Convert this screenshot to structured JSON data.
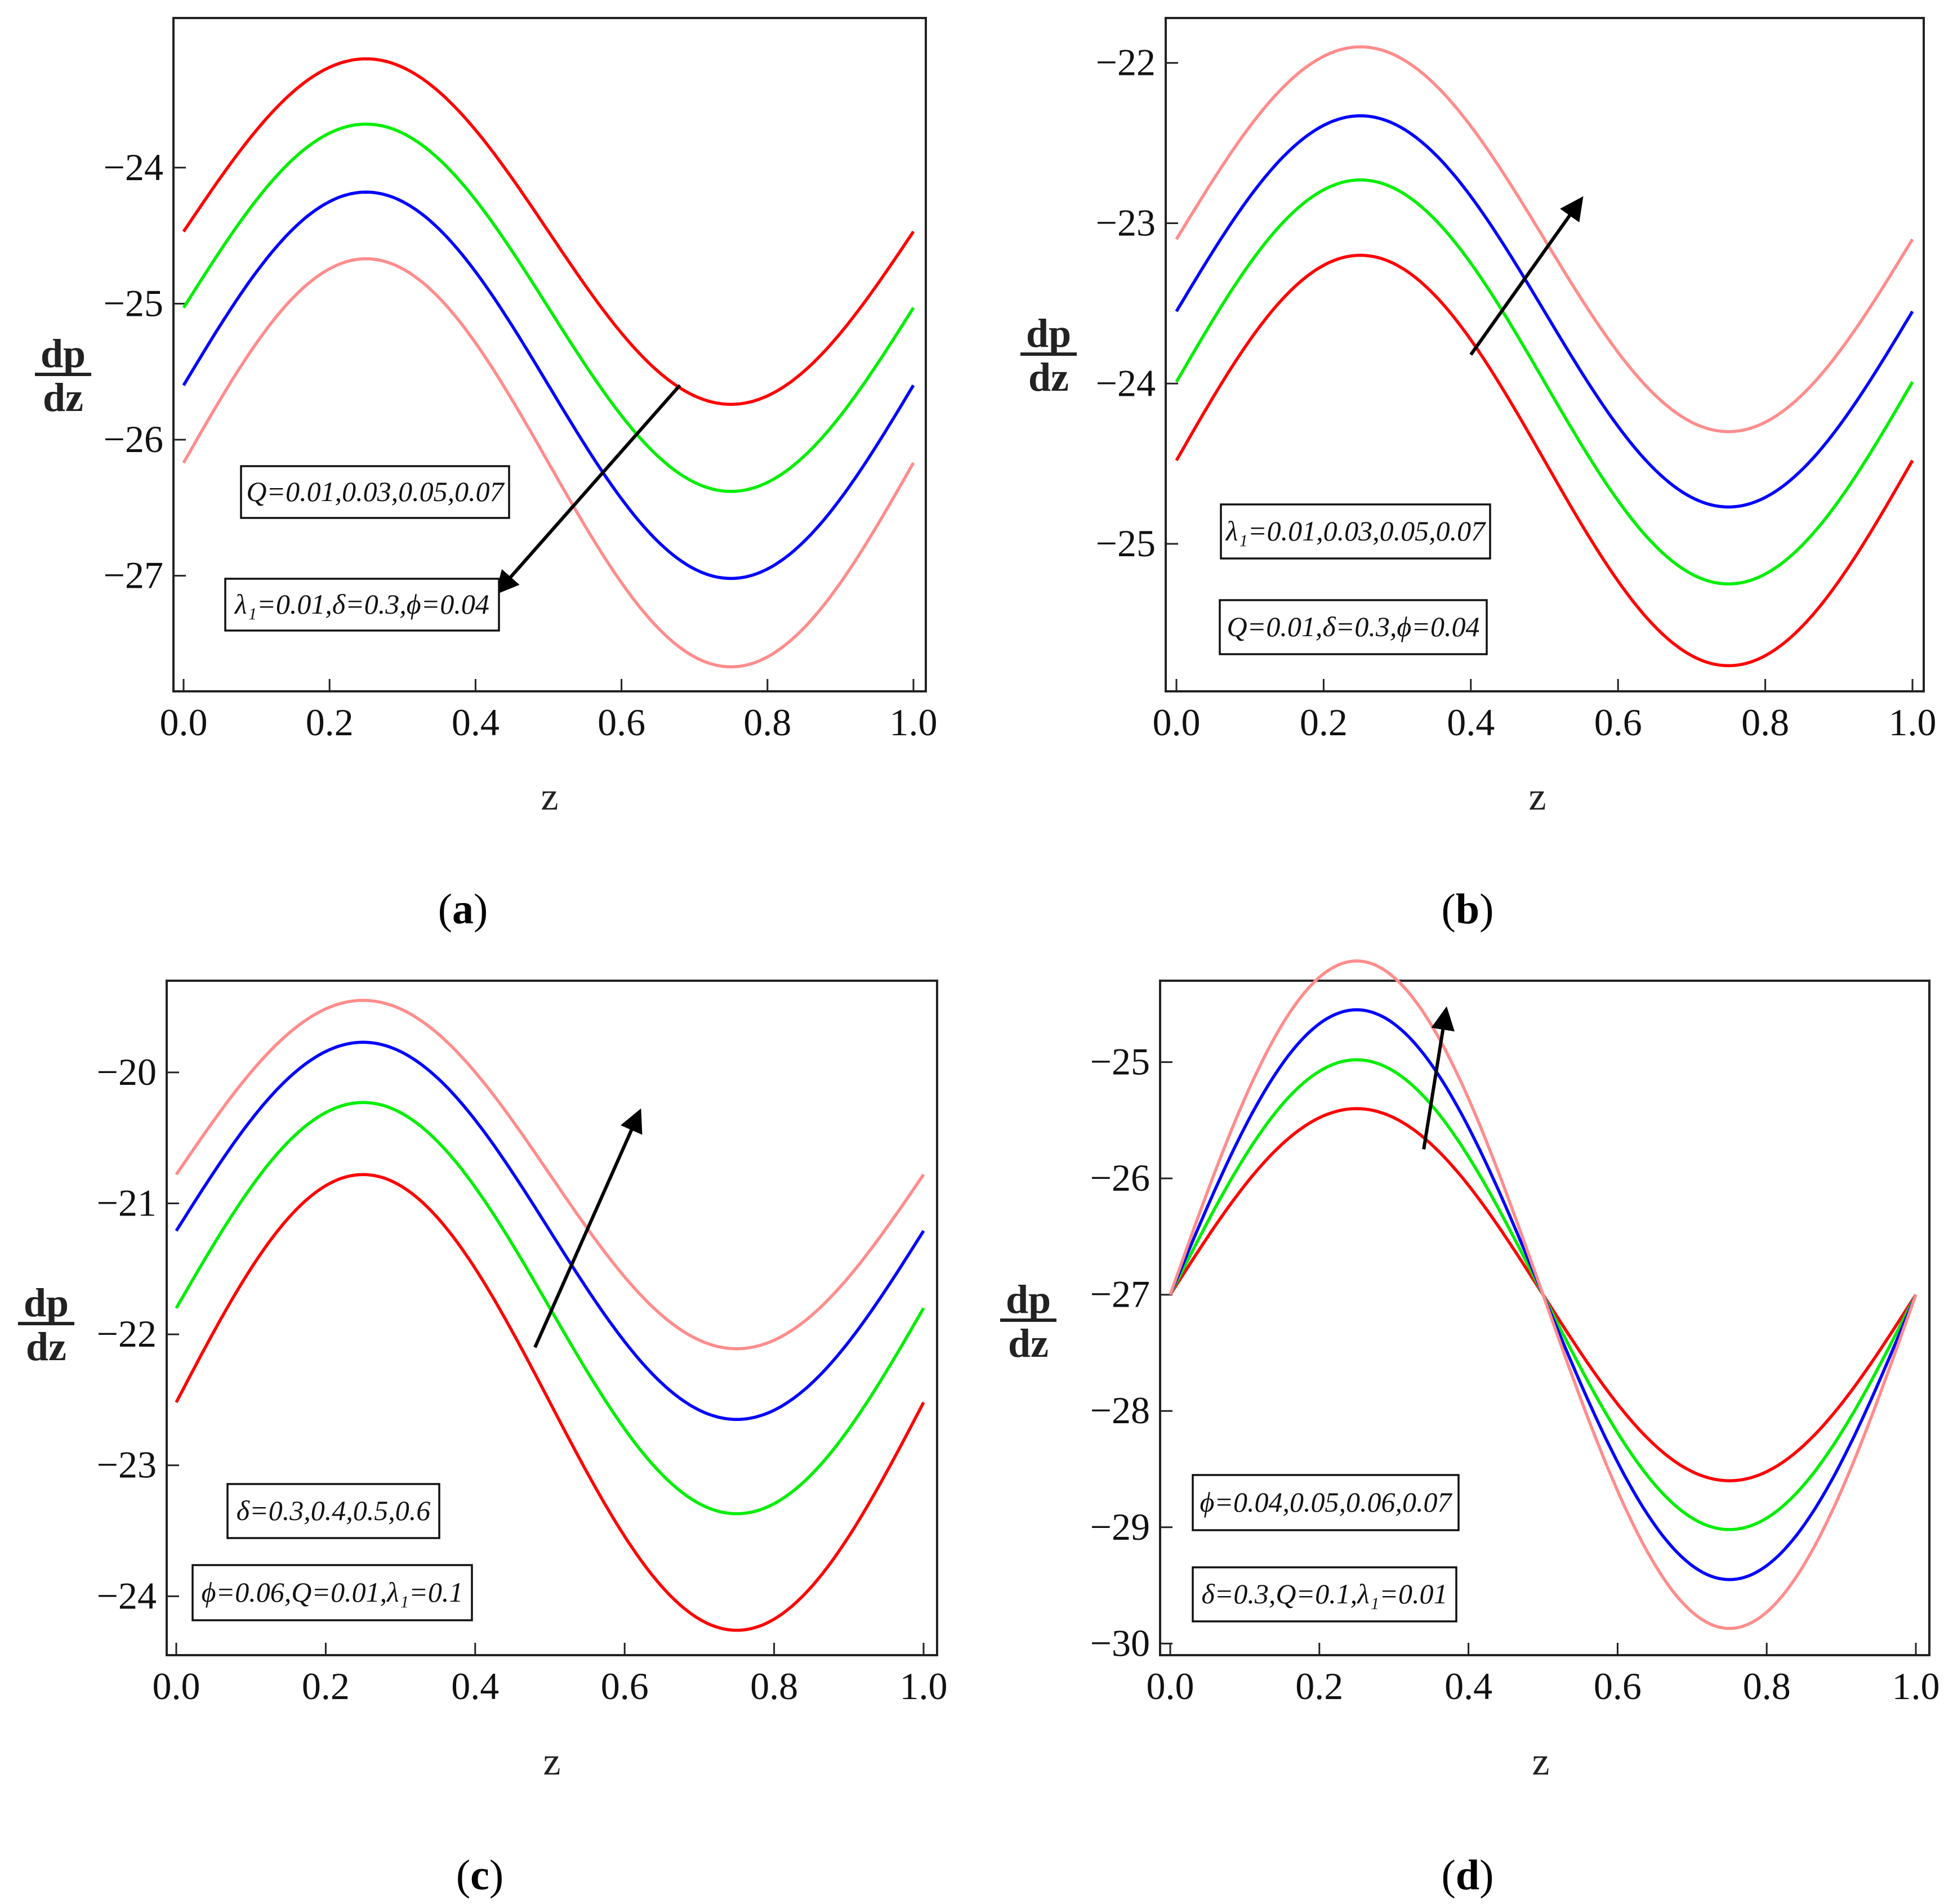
{
  "chart_data": [
    {
      "type": "line",
      "panel_label": "(a)",
      "panel_letter": "a",
      "xlabel": "z",
      "ylabel_num": "dp",
      "ylabel_den": "dz",
      "xlim": [
        0,
        1
      ],
      "ylim": [
        -27.85,
        -22.9
      ],
      "xticks": [
        0,
        0.2,
        0.4,
        0.6,
        0.8,
        1
      ],
      "xtick_labels": [
        "0.0",
        "0.2",
        "0.4",
        "0.6",
        "0.8",
        "1.0"
      ],
      "yticks": [
        -27,
        -26,
        -25,
        -24
      ],
      "ytick_labels": [
        "−27",
        "−26",
        "−25",
        "−24"
      ],
      "series": [
        {
          "name": "Q=0.01",
          "color": "#ff0000",
          "mean": -24.47,
          "amp": 1.27,
          "phase": 0
        },
        {
          "name": "Q=0.03",
          "color": "#00ee00",
          "mean": -25.03,
          "amp": 1.35,
          "phase": 0
        },
        {
          "name": "Q=0.05",
          "color": "#0000ff",
          "mean": -25.6,
          "amp": 1.42,
          "phase": 0
        },
        {
          "name": "Q=0.07",
          "color": "#ff8c8c",
          "mean": -26.17,
          "amp": 1.5,
          "phase": 0
        }
      ],
      "legend": [
        "Q=0.01,0.03,0.05,0.07",
        "λ₁=0.01,δ=0.3,ϕ=0.04"
      ],
      "legend_place": "bottom-left",
      "arrow": {
        "from": [
          0.68,
          -25.6
        ],
        "to": [
          0.43,
          -27.12
        ],
        "direction": "increasing Q"
      }
    },
    {
      "type": "line",
      "panel_label": "(b)",
      "panel_letter": "b",
      "xlabel": "z",
      "ylabel_num": "dp",
      "ylabel_den": "dz",
      "xlim": [
        0,
        1
      ],
      "ylim": [
        -25.92,
        -21.72
      ],
      "xticks": [
        0,
        0.2,
        0.4,
        0.6,
        0.8,
        1
      ],
      "xtick_labels": [
        "0.0",
        "0.2",
        "0.4",
        "0.6",
        "0.8",
        "1.0"
      ],
      "yticks": [
        -25,
        -24,
        -23,
        -22
      ],
      "ytick_labels": [
        "−25",
        "−24",
        "−23",
        "−22"
      ],
      "series": [
        {
          "name": "λ₁=0.01",
          "color": "#ff0000",
          "mean": -24.48,
          "amp": 1.28,
          "phase": 0
        },
        {
          "name": "λ₁=0.03",
          "color": "#00ee00",
          "mean": -23.99,
          "amp": 1.26,
          "phase": 0
        },
        {
          "name": "λ₁=0.05",
          "color": "#0000ff",
          "mean": -23.55,
          "amp": 1.22,
          "phase": 0
        },
        {
          "name": "λ₁=0.07",
          "color": "#ff8c8c",
          "mean": -23.1,
          "amp": 1.2,
          "phase": 0
        }
      ],
      "legend": [
        "λ₁=0.01,0.03,0.05,0.07",
        "Q=0.01,δ=0.3,ϕ=0.04"
      ],
      "legend_place": "bottom-left",
      "arrow": {
        "from": [
          0.4,
          -23.82
        ],
        "to": [
          0.55,
          -22.85
        ],
        "direction": "increasing λ₁"
      }
    },
    {
      "type": "line",
      "panel_label": "(c)",
      "panel_letter": "c",
      "xlabel": "z",
      "ylabel_num": "dp",
      "ylabel_den": "dz",
      "xlim": [
        0,
        1
      ],
      "ylim": [
        -24.45,
        -19.3
      ],
      "xticks": [
        0,
        0.2,
        0.4,
        0.6,
        0.8,
        1
      ],
      "xtick_labels": [
        "0.0",
        "0.2",
        "0.4",
        "0.6",
        "0.8",
        "1.0"
      ],
      "yticks": [
        -24,
        -23,
        -22,
        -21,
        -20
      ],
      "ytick_labels": [
        "−24",
        "−23",
        "−22",
        "−21",
        "−20"
      ],
      "series": [
        {
          "name": "δ=0.3",
          "color": "#ff0000",
          "mean": -22.52,
          "amp": 1.74,
          "phase": 0
        },
        {
          "name": "δ=0.4",
          "color": "#00ee00",
          "mean": -21.8,
          "amp": 1.57,
          "phase": 0
        },
        {
          "name": "δ=0.5",
          "color": "#0000ff",
          "mean": -21.21,
          "amp": 1.44,
          "phase": 0
        },
        {
          "name": "δ=0.6",
          "color": "#ff8c8c",
          "mean": -20.78,
          "amp": 1.33,
          "phase": 0
        }
      ],
      "legend": [
        "δ=0.3,0.4,0.5,0.6",
        "ϕ=0.06,Q=0.01,λ₁=0.1"
      ],
      "legend_place": "bottom-left",
      "arrow": {
        "from": [
          0.48,
          -22.1
        ],
        "to": [
          0.62,
          -20.3
        ],
        "direction": "increasing δ"
      }
    },
    {
      "type": "line",
      "panel_label": "(d)",
      "panel_letter": "d",
      "xlabel": "z",
      "ylabel_num": "dp",
      "ylabel_den": "dz",
      "xlim": [
        0,
        1
      ],
      "ylim": [
        -30.1,
        -24.3
      ],
      "xticks": [
        0,
        0.2,
        0.4,
        0.6,
        0.8,
        1
      ],
      "xtick_labels": [
        "0.0",
        "0.2",
        "0.4",
        "0.6",
        "0.8",
        "1.0"
      ],
      "yticks": [
        -30,
        -29,
        -28,
        -27,
        -26,
        -25
      ],
      "ytick_labels": [
        "−30",
        "−29",
        "−28",
        "−27",
        "−26",
        "−25"
      ],
      "series": [
        {
          "name": "ϕ=0.04",
          "color": "#ff0000",
          "mean": -27.0,
          "amp": 1.6,
          "phase": 0
        },
        {
          "name": "ϕ=0.05",
          "color": "#00ee00",
          "mean": -27.0,
          "amp": 2.02,
          "phase": 0
        },
        {
          "name": "ϕ=0.06",
          "color": "#0000ff",
          "mean": -27.0,
          "amp": 2.45,
          "phase": 0
        },
        {
          "name": "ϕ=0.07",
          "color": "#ff8c8c",
          "mean": -27.0,
          "amp": 2.87,
          "phase": 0
        }
      ],
      "legend": [
        "ϕ=0.04,0.05,0.06,0.07",
        "δ=0.3,Q=0.1,λ₁=0.01"
      ],
      "legend_place": "bottom-left",
      "arrow": {
        "from": [
          0.34,
          -25.75
        ],
        "to": [
          0.37,
          -24.55
        ],
        "direction": "increasing ϕ"
      }
    }
  ]
}
